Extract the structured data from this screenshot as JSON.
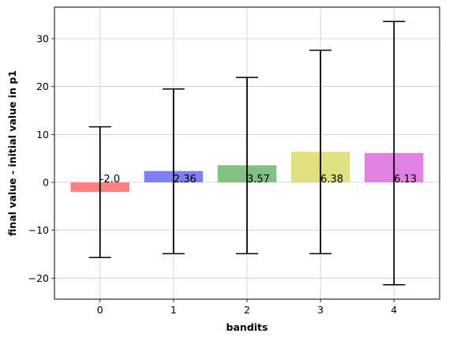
{
  "chart_data": {
    "type": "bar",
    "title": "",
    "xlabel": "bandits",
    "ylabel": "final value - initial value in p1",
    "categories": [
      "0",
      "1",
      "2",
      "3",
      "4"
    ],
    "values": [
      -2.0,
      2.36,
      3.57,
      6.38,
      6.13
    ],
    "value_labels": [
      "-2.0",
      "2.36",
      "3.57",
      "6.38",
      "6.13"
    ],
    "error_low": [
      -15.7,
      -14.9,
      -14.9,
      -14.9,
      -21.4
    ],
    "error_high": [
      11.6,
      19.5,
      21.9,
      27.6,
      33.6
    ],
    "colors": [
      "#ff8080",
      "#8080f5",
      "#80c080",
      "#e0e080",
      "#e080e0"
    ],
    "yticks": [
      -20,
      -10,
      0,
      10,
      20,
      30
    ],
    "ytick_labels": [
      "−20",
      "−10",
      "0",
      "10",
      "20",
      "30"
    ],
    "ylim": [
      -24.4,
      36.6
    ],
    "xlim": [
      -0.62,
      4.62
    ],
    "grid": true,
    "legend": "none"
  }
}
